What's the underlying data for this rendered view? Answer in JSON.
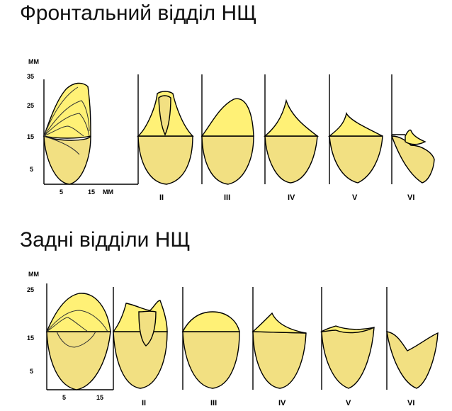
{
  "titles": {
    "top": "Фронтальний відділ НЩ",
    "bottom": "Задні відділи НЩ"
  },
  "units": {
    "mm": "мм",
    "mm_upper": "ММ"
  },
  "top_panel": {
    "y_ticks": [
      "35",
      "25",
      "15",
      "5"
    ],
    "x_ticks": [
      "5",
      "15"
    ],
    "x_unit": "ММ",
    "stages": [
      "II",
      "III",
      "IV",
      "V",
      "VI"
    ]
  },
  "bottom_panel": {
    "y_ticks": [
      "25",
      "15",
      "5"
    ],
    "x_ticks": [
      "5",
      "15"
    ],
    "stages": [
      "II",
      "III",
      "IV",
      "V",
      "VI"
    ]
  },
  "colors": {
    "upper_fill": "#fff176",
    "lower_fill": "#f2e082",
    "dots": "#b79a3a",
    "outline": "#000000"
  }
}
